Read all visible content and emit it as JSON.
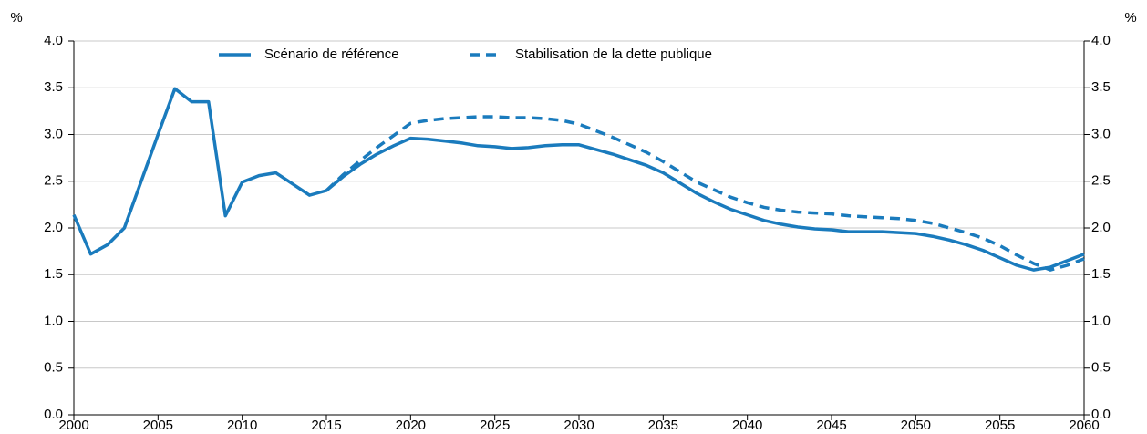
{
  "chart_data": {
    "type": "line",
    "y_label": "%",
    "y2_label": "%",
    "x": [
      2000,
      2001,
      2002,
      2003,
      2004,
      2005,
      2006,
      2007,
      2008,
      2009,
      2010,
      2011,
      2012,
      2013,
      2014,
      2015,
      2016,
      2017,
      2018,
      2019,
      2020,
      2021,
      2022,
      2023,
      2024,
      2025,
      2026,
      2027,
      2028,
      2029,
      2030,
      2031,
      2032,
      2033,
      2034,
      2035,
      2036,
      2037,
      2038,
      2039,
      2040,
      2041,
      2042,
      2043,
      2044,
      2045,
      2046,
      2047,
      2048,
      2049,
      2050,
      2051,
      2052,
      2053,
      2054,
      2055,
      2056,
      2057,
      2058,
      2059,
      2060
    ],
    "series": [
      {
        "name": "Scénario de référence",
        "color": "#1a7bbd",
        "dash": false,
        "values": [
          2.14,
          1.72,
          1.82,
          2.0,
          2.5,
          3.0,
          3.49,
          3.35,
          3.35,
          2.13,
          2.49,
          2.56,
          2.59,
          2.47,
          2.35,
          2.4,
          2.55,
          2.68,
          2.79,
          2.88,
          2.96,
          2.95,
          2.93,
          2.91,
          2.88,
          2.87,
          2.85,
          2.86,
          2.88,
          2.89,
          2.89,
          2.84,
          2.79,
          2.73,
          2.67,
          2.59,
          2.48,
          2.37,
          2.28,
          2.2,
          2.14,
          2.08,
          2.04,
          2.01,
          1.99,
          1.98,
          1.96,
          1.96,
          1.96,
          1.95,
          1.94,
          1.91,
          1.87,
          1.82,
          1.76,
          1.68,
          1.6,
          1.55,
          1.58,
          1.65,
          1.72
        ]
      },
      {
        "name": "Stabilisation de la dette publique",
        "color": "#1a7bbd",
        "dash": true,
        "values": [
          null,
          null,
          null,
          null,
          null,
          null,
          null,
          null,
          null,
          null,
          null,
          null,
          null,
          null,
          null,
          2.4,
          2.57,
          2.72,
          2.86,
          2.99,
          3.12,
          3.15,
          3.17,
          3.18,
          3.19,
          3.19,
          3.18,
          3.18,
          3.17,
          3.15,
          3.11,
          3.04,
          2.97,
          2.89,
          2.81,
          2.71,
          2.6,
          2.49,
          2.41,
          2.33,
          2.27,
          2.22,
          2.19,
          2.17,
          2.16,
          2.15,
          2.13,
          2.12,
          2.11,
          2.1,
          2.08,
          2.05,
          2.0,
          1.95,
          1.89,
          1.81,
          1.71,
          1.62,
          1.55,
          1.6,
          1.67
        ]
      }
    ],
    "xlim": [
      2000,
      2060
    ],
    "xticks": [
      2000,
      2005,
      2010,
      2015,
      2020,
      2025,
      2030,
      2035,
      2040,
      2045,
      2050,
      2055,
      2060
    ],
    "ylim": [
      0,
      4
    ],
    "yticks": [
      {
        "value": 0,
        "label": "0.0"
      },
      0.5,
      {
        "value": 1,
        "label": "1.0"
      },
      1.5,
      {
        "value": 2,
        "label": "2.0"
      },
      2.5,
      {
        "value": 3,
        "label": "3.0"
      },
      3.5,
      {
        "value": 4,
        "label": "4.0"
      }
    ],
    "y2lim": [
      0,
      4
    ],
    "y2ticks": [
      {
        "value": 0,
        "label": "0.0"
      },
      0.5,
      {
        "value": 1,
        "label": "1.0"
      },
      1.5,
      {
        "value": 2,
        "label": "2.0"
      },
      2.5,
      {
        "value": 3,
        "label": "3.0"
      },
      3.5,
      {
        "value": 4,
        "label": "4.0"
      }
    ],
    "grid": true,
    "legend": "top"
  }
}
